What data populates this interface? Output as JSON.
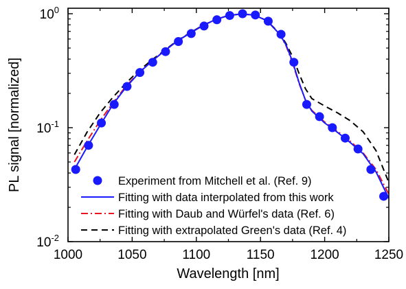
{
  "chart_data": {
    "type": "line",
    "title": "",
    "xlabel": "Wavelength [nm]",
    "ylabel": "PL signal [normalized]",
    "xlim": [
      1000,
      1250
    ],
    "ylim": [
      0.01,
      1.2
    ],
    "yscale": "log",
    "grid": false,
    "legend_position": "bottom-right",
    "x_ticks": [
      "1000",
      "1050",
      "1100",
      "1150",
      "1200",
      "1250"
    ],
    "x_tick_values": [
      1000,
      1050,
      1100,
      1150,
      1200,
      1250
    ],
    "y_ticks": [
      {
        "base": "10",
        "exp": "-2",
        "value": 0.01
      },
      {
        "base": "10",
        "exp": "-1",
        "value": 0.1
      },
      {
        "base": "10",
        "exp": "0",
        "value": 1
      }
    ],
    "series": [
      {
        "name": "Experiment from Mitchell et al. (Ref. 9)",
        "style": "markers",
        "color": "#1a1aff",
        "x": [
          1006,
          1016,
          1026,
          1036,
          1046,
          1056,
          1066,
          1076,
          1086,
          1096,
          1106,
          1116,
          1126,
          1136,
          1146,
          1156,
          1166,
          1176,
          1186,
          1196,
          1206,
          1216,
          1226,
          1236,
          1246
        ],
        "y": [
          0.043,
          0.07,
          0.11,
          0.16,
          0.23,
          0.305,
          0.375,
          0.465,
          0.57,
          0.67,
          0.78,
          0.885,
          0.965,
          1.0,
          0.975,
          0.86,
          0.66,
          0.375,
          0.16,
          0.125,
          0.1,
          0.081,
          0.065,
          0.043,
          0.025
        ]
      },
      {
        "name": "Fitting with data interpolated from this work",
        "style": "solid",
        "color": "#1a1aff",
        "x": [
          1005,
          1015,
          1025,
          1035,
          1045,
          1055,
          1065,
          1075,
          1085,
          1095,
          1105,
          1115,
          1125,
          1135,
          1145,
          1155,
          1165,
          1170,
          1175,
          1180,
          1185,
          1190,
          1200,
          1210,
          1220,
          1230,
          1240,
          1250
        ],
        "y": [
          0.043,
          0.068,
          0.105,
          0.16,
          0.225,
          0.3,
          0.38,
          0.47,
          0.575,
          0.675,
          0.785,
          0.89,
          0.965,
          0.995,
          0.975,
          0.87,
          0.66,
          0.53,
          0.38,
          0.25,
          0.175,
          0.14,
          0.11,
          0.091,
          0.074,
          0.059,
          0.041,
          0.024
        ]
      },
      {
        "name": "Fitting with Daub and Würfel's data (Ref. 6)",
        "style": "dashdot",
        "color": "#e8141e",
        "x": [
          1005,
          1015,
          1025,
          1035,
          1045,
          1055,
          1065,
          1075,
          1085,
          1095,
          1105,
          1115,
          1125,
          1135,
          1145,
          1155,
          1165,
          1170,
          1175,
          1180,
          1185,
          1190,
          1200,
          1210,
          1220,
          1230,
          1240,
          1250
        ],
        "y": [
          0.05,
          0.077,
          0.115,
          0.165,
          0.23,
          0.303,
          0.382,
          0.47,
          0.575,
          0.675,
          0.785,
          0.89,
          0.965,
          0.995,
          0.975,
          0.87,
          0.66,
          0.52,
          0.37,
          0.245,
          0.175,
          0.142,
          0.112,
          0.093,
          0.076,
          0.06,
          0.043,
          0.026
        ]
      },
      {
        "name": "Fitting with extrapolated Green's data (Ref. 4)",
        "style": "dashed",
        "color": "#000000",
        "x": [
          1005,
          1015,
          1025,
          1035,
          1045,
          1055,
          1065,
          1075,
          1085,
          1095,
          1105,
          1115,
          1125,
          1135,
          1145,
          1155,
          1165,
          1170,
          1175,
          1180,
          1185,
          1190,
          1200,
          1210,
          1220,
          1230,
          1240,
          1250
        ],
        "y": [
          0.058,
          0.092,
          0.135,
          0.185,
          0.245,
          0.315,
          0.39,
          0.475,
          0.58,
          0.68,
          0.79,
          0.89,
          0.965,
          0.995,
          0.975,
          0.87,
          0.67,
          0.545,
          0.42,
          0.3,
          0.22,
          0.18,
          0.155,
          0.135,
          0.115,
          0.092,
          0.063,
          0.033
        ]
      }
    ]
  }
}
